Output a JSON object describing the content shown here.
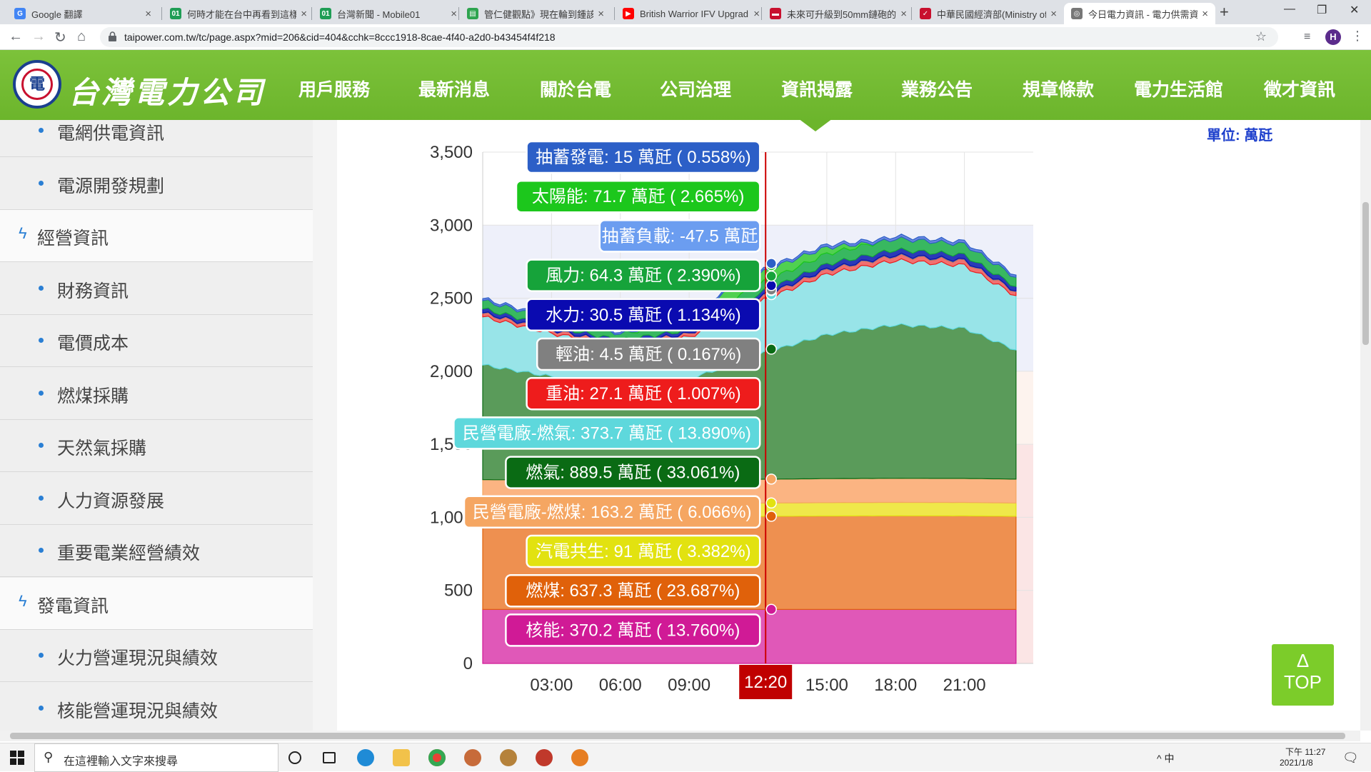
{
  "browser": {
    "tabs": [
      {
        "title": "Google 翻譯",
        "color": "#4285f4",
        "icon": "G"
      },
      {
        "title": "何時才能在台中再看到這樣",
        "color": "#1f9d55",
        "icon": "01"
      },
      {
        "title": "台灣新聞 - Mobile01",
        "color": "#1f9d55",
        "icon": "01"
      },
      {
        "title": "管仁健觀點》現在輪到鍾該",
        "color": "#2ea44f",
        "icon": "▤"
      },
      {
        "title": "British Warrior IFV Upgrad",
        "color": "#ff0000",
        "icon": "▶"
      },
      {
        "title": "未來可升級到50mm鏈砲的",
        "color": "#c8102e",
        "icon": "▬"
      },
      {
        "title": "中華民國經濟部(Ministry of",
        "color": "#c8102e",
        "icon": "✓"
      },
      {
        "title": "今日電力資訊 - 電力供需資",
        "color": "#777777",
        "icon": "◎"
      }
    ],
    "url": "taipower.com.tw/tc/page.aspx?mid=206&cid=404&cchk=8ccc1918-8cae-4f40-a2d0-b43454f4f218",
    "profile_initial": "H"
  },
  "site": {
    "logo_text": "台灣電力公司",
    "nav": [
      "用戶服務",
      "最新消息",
      "關於台電",
      "公司治理",
      "資訊揭露",
      "業務公告",
      "規章條款",
      "電力生活館",
      "徵才資訊"
    ]
  },
  "sidebar": [
    {
      "type": "sub",
      "label": "電網供電資訊"
    },
    {
      "type": "sub",
      "label": "電源開發規劃"
    },
    {
      "type": "cat",
      "label": "經營資訊"
    },
    {
      "type": "sub",
      "label": "財務資訊"
    },
    {
      "type": "sub",
      "label": "電價成本"
    },
    {
      "type": "sub",
      "label": "燃煤採購"
    },
    {
      "type": "sub",
      "label": "天然氣採購"
    },
    {
      "type": "sub",
      "label": "人力資源發展"
    },
    {
      "type": "sub",
      "label": "重要電業經營績效"
    },
    {
      "type": "cat",
      "label": "發電資訊"
    },
    {
      "type": "sub",
      "label": "火力營運現況與績效"
    },
    {
      "type": "sub",
      "label": "核能營運現況與績效"
    }
  ],
  "unit_label": "單位: 萬瓩",
  "top_button": {
    "arrow": "Δ",
    "label": "TOP"
  },
  "chart_data": {
    "type": "area",
    "stacked": true,
    "ylim": [
      0,
      3500
    ],
    "yticks": [
      "0",
      "500",
      "1,000",
      "1,500",
      "2,000",
      "2,500",
      "3,000",
      "3,500"
    ],
    "xlim": [
      0,
      24
    ],
    "xticks": [
      "03:00",
      "06:00",
      "09:00",
      "15:00",
      "18:00",
      "21:00"
    ],
    "cursor": {
      "label": "12:20",
      "hour": 12.333
    },
    "approx_totals": {
      "hours": [
        0,
        3,
        6,
        9,
        12.33,
        15,
        18,
        21,
        23.33
      ],
      "values": [
        2560,
        2430,
        2320,
        2400,
        2700,
        2900,
        3010,
        2970,
        2720
      ]
    },
    "tooltip": [
      {
        "name": "抽蓄發電",
        "text": "抽蓄發電: 15 萬瓩 ( 0.558%)",
        "value": 15,
        "color": "#2c5fc7",
        "text_color": "#ffffff"
      },
      {
        "name": "太陽能",
        "text": "太陽能: 71.7 萬瓩 ( 2.665%)",
        "value": 71.7,
        "color": "#1cc71c",
        "text_color": "#ffffff"
      },
      {
        "name": "抽蓄負載",
        "text": "抽蓄負載: -47.5 萬瓩",
        "value": -47.5,
        "color": "#6b9df0",
        "text_color": "#ffffff"
      },
      {
        "name": "風力",
        "text": "風力: 64.3 萬瓩 ( 2.390%)",
        "value": 64.3,
        "color": "#16a33a",
        "text_color": "#ffffff"
      },
      {
        "name": "水力",
        "text": "水力: 30.5 萬瓩 ( 1.134%)",
        "value": 30.5,
        "color": "#0a0ab0",
        "text_color": "#ffffff"
      },
      {
        "name": "輕油",
        "text": "輕油: 4.5 萬瓩 ( 0.167%)",
        "value": 4.5,
        "color": "#808080",
        "text_color": "#ffffff"
      },
      {
        "name": "重油",
        "text": "重油: 27.1 萬瓩 ( 1.007%)",
        "value": 27.1,
        "color": "#ee1c1c",
        "text_color": "#ffffff"
      },
      {
        "name": "民營電廠-燃氣",
        "text": "民營電廠-燃氣: 373.7 萬瓩 ( 13.890%)",
        "value": 373.7,
        "color": "#5ed8dc",
        "text_color": "#ffffff"
      },
      {
        "name": "燃氣",
        "text": "燃氣: 889.5 萬瓩 ( 33.061%)",
        "value": 889.5,
        "color": "#0a6b14",
        "text_color": "#ffffff"
      },
      {
        "name": "民營電廠-燃煤",
        "text": "民營電廠-燃煤: 163.2 萬瓩 ( 6.066%)",
        "value": 163.2,
        "color": "#f5a662",
        "text_color": "#ffffff"
      },
      {
        "name": "汽電共生",
        "text": "汽電共生: 91 萬瓩 ( 3.382%)",
        "value": 91,
        "color": "#e2e210",
        "text_color": "#ffffff"
      },
      {
        "name": "燃煤",
        "text": "燃煤: 637.3 萬瓩 ( 23.687%)",
        "value": 637.3,
        "color": "#e0610a",
        "text_color": "#ffffff"
      },
      {
        "name": "核能",
        "text": "核能: 370.2 萬瓩 ( 13.760%)",
        "value": 370.2,
        "color": "#d01a96",
        "text_color": "#ffffff"
      }
    ],
    "stack_order": [
      "核能",
      "燃煤",
      "汽電共生",
      "民營電廠-燃煤",
      "燃氣",
      "民營電廠-燃氣",
      "重油",
      "輕油",
      "水力",
      "風力",
      "太陽能",
      "抽蓄發電"
    ],
    "fill_colors": {
      "核能": "#e058b8",
      "燃煤": "#ee9050",
      "汽電共生": "#efe84a",
      "民營電廠-燃煤": "#fbb482",
      "燃氣": "#5a9b5a",
      "民營電廠-燃氣": "#98e4e8",
      "重油": "#f07070",
      "輕油": "#a8a8a8",
      "水力": "#2a3ab8",
      "風力": "#38b860",
      "太陽能": "#50d050",
      "抽蓄發電": "#6a86e0"
    },
    "grid": true
  },
  "taskbar": {
    "search_placeholder": "在這裡輸入文字來搜尋",
    "tray": "^ 中",
    "time": "下午 11:27",
    "date": "2021/1/8"
  }
}
